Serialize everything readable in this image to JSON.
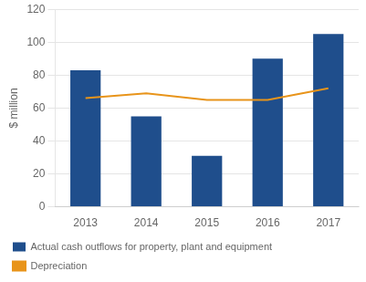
{
  "chart_data": {
    "type": "bar",
    "categories": [
      "2013",
      "2014",
      "2015",
      "2016",
      "2017"
    ],
    "series": [
      {
        "name": "Actual cash outflows for property, plant and equipment",
        "type": "bar",
        "color": "#1F4E8C",
        "values": [
          83,
          55,
          31,
          90,
          105
        ]
      },
      {
        "name": "Depreciation",
        "type": "line",
        "color": "#E8941A",
        "values": [
          66,
          69,
          65,
          65,
          72
        ]
      }
    ],
    "ylabel": "$ million",
    "ylim": [
      0,
      120
    ],
    "yticks": [
      0,
      20,
      40,
      60,
      80,
      100,
      120
    ],
    "grid": true,
    "legend": "bottom"
  }
}
